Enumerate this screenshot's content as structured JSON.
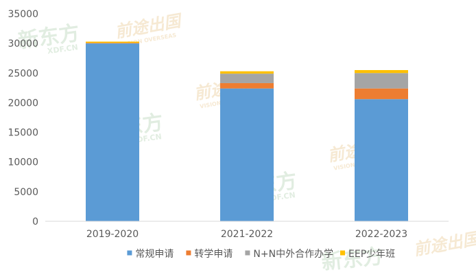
{
  "chart_data": {
    "type": "bar",
    "stacked": true,
    "categories": [
      "2019-2020",
      "2021-2022",
      "2022-2023"
    ],
    "series": [
      {
        "name": "常规申请",
        "color": "#5b9bd5",
        "values": [
          30000,
          22400,
          20600
        ]
      },
      {
        "name": "转学申请",
        "color": "#ed7d31",
        "values": [
          100,
          900,
          1800
        ]
      },
      {
        "name": "N+N中外合作办学",
        "color": "#a5a5a5",
        "values": [
          0,
          1600,
          2600
        ]
      },
      {
        "name": "EEP少年班",
        "color": "#ffc000",
        "values": [
          200,
          400,
          500
        ]
      }
    ],
    "ylim": [
      0,
      35000
    ],
    "yticks": [
      0,
      5000,
      10000,
      15000,
      20000,
      25000,
      30000,
      35000
    ],
    "grid": false,
    "legend_position": "bottom"
  },
  "watermarks": {
    "brand_cn": "新东方",
    "brand_en": "XDF.CN",
    "sub_cn": "前途出国",
    "sub_en": "VISION OVERSEAS"
  }
}
